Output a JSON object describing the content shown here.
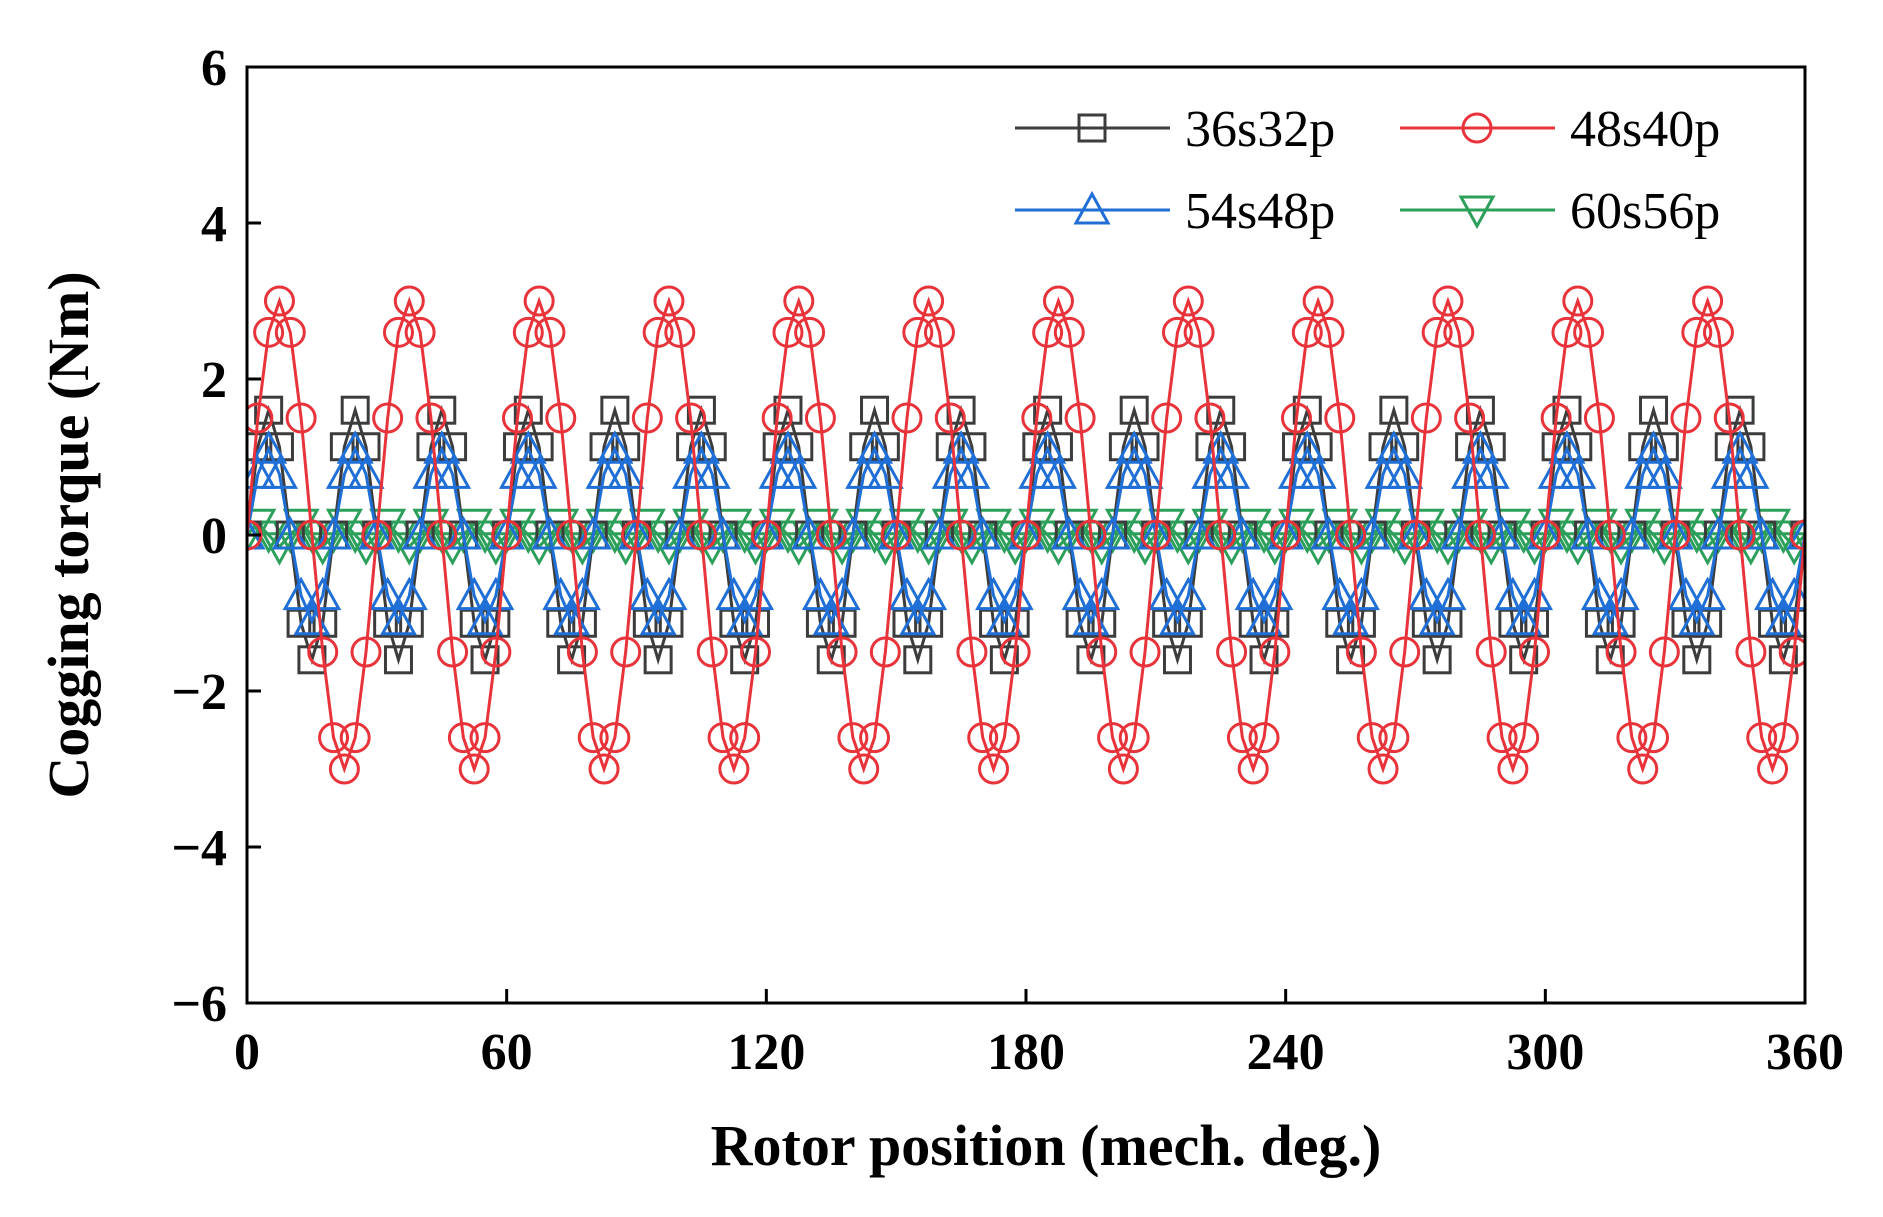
{
  "chart_data": {
    "type": "line",
    "xlabel": "Rotor position (mech. deg.)",
    "ylabel": "Cogging torque (Nm)",
    "xlim": [
      0,
      360
    ],
    "ylim": [
      -6,
      6
    ],
    "xticks": [
      0,
      60,
      120,
      180,
      240,
      300,
      360
    ],
    "yticks": [
      -6,
      -4,
      -2,
      0,
      2,
      4,
      6
    ],
    "ytick_labels": [
      "−6",
      "−4",
      "−2",
      "0",
      "2",
      "4",
      "6"
    ],
    "xtick_labels": [
      "0",
      "60",
      "120",
      "180",
      "240",
      "300",
      "360"
    ],
    "legend_position": "top-right",
    "grid": false,
    "sample_step_deg": 2.5,
    "series": [
      {
        "name": "36s32p",
        "color": "#3c3c3c",
        "marker": "square",
        "amplitude": 1.6,
        "period_deg": 20.0,
        "phase_deg": 0
      },
      {
        "name": "48s40p",
        "color": "#e8333a",
        "marker": "circle",
        "amplitude": 3.0,
        "period_deg": 30.0,
        "phase_deg": 0
      },
      {
        "name": "54s48p",
        "color": "#1f6fd6",
        "marker": "triangle-up",
        "amplitude": 1.1,
        "period_deg": 20.0,
        "phase_deg": 0
      },
      {
        "name": "60s56p",
        "color": "#2ca05a",
        "marker": "triangle-down",
        "amplitude": 0.15,
        "period_deg": 10.0,
        "phase_deg": 0
      }
    ]
  }
}
